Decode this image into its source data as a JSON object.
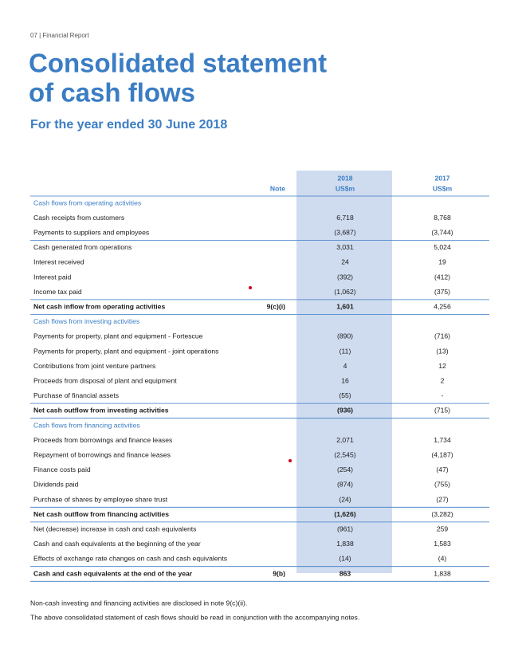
{
  "header": {
    "section": "07 | Financial Report",
    "title_line1": "Consolidated statement",
    "title_line2": "of cash flows",
    "subtitle": "For the year ended 30 June 2018"
  },
  "table": {
    "columns": {
      "note": "Note",
      "year1": "2018",
      "unit1": "US$m",
      "year2": "2017",
      "unit2": "US$m"
    },
    "rows": [
      {
        "label": "Cash flows from operating activities",
        "style": "section"
      },
      {
        "label": "Cash receipts from customers",
        "v2018": "6,718",
        "v2017": "8,768"
      },
      {
        "label": "Payments to suppliers and employees",
        "v2018": "(3,687)",
        "v2017": "(3,744)"
      },
      {
        "label": "Cash generated from operations",
        "v2018": "3,031",
        "v2017": "5,024"
      },
      {
        "label": "Interest received",
        "v2018": "24",
        "v2017": "19"
      },
      {
        "label": "Interest paid",
        "v2018": "(392)",
        "v2017": "(412)"
      },
      {
        "label": "Income tax paid",
        "v2018": "(1,062)",
        "v2017": "(375)"
      },
      {
        "label": "Net cash inflow from operating activities",
        "note": "9(c)(i)",
        "v2018": "1,601",
        "v2017": "4,256",
        "style": "bold"
      },
      {
        "label": "Cash flows from investing activities",
        "style": "section"
      },
      {
        "label": "Payments for property, plant and equipment - Fortescue",
        "v2018": "(890)",
        "v2017": "(716)"
      },
      {
        "label": "Payments for property, plant and equipment - joint operations",
        "v2018": "(11)",
        "v2017": "(13)"
      },
      {
        "label": "Contributions from joint venture partners",
        "v2018": "4",
        "v2017": "12"
      },
      {
        "label": "Proceeds from disposal of plant and equipment",
        "v2018": "16",
        "v2017": "2"
      },
      {
        "label": "Purchase of financial assets",
        "v2018": "(55)",
        "v2017": "-"
      },
      {
        "label": "Net cash outflow from investing activities",
        "v2018": "(936)",
        "v2017": "(715)",
        "style": "bold"
      },
      {
        "label": "Cash flows from financing activities",
        "style": "section"
      },
      {
        "label": "Proceeds from borrowings and finance leases",
        "v2018": "2,071",
        "v2017": "1,734"
      },
      {
        "label": "Repayment of borrowings and finance leases",
        "v2018": "(2,545)",
        "v2017": "(4,187)"
      },
      {
        "label": "Finance costs paid",
        "v2018": "(254)",
        "v2017": "(47)"
      },
      {
        "label": "Dividends paid",
        "v2018": "(874)",
        "v2017": "(755)"
      },
      {
        "label": "Purchase of shares by employee share trust",
        "v2018": "(24)",
        "v2017": "(27)"
      },
      {
        "label": "Net cash outflow from financing activities",
        "v2018": "(1,626)",
        "v2017": "(3,282)",
        "style": "bold"
      },
      {
        "label": "Net (decrease) increase in cash and cash equivalents",
        "v2018": "(961)",
        "v2017": "259"
      },
      {
        "label": "Cash and cash equivalents at the beginning of the year",
        "v2018": "1,838",
        "v2017": "1,583"
      },
      {
        "label": "Effects of exchange rate changes on cash and cash equivalents",
        "v2018": "(14)",
        "v2017": "(4)"
      },
      {
        "label": "Cash and cash equivalents at the end of the year",
        "note": "9(b)",
        "v2018": "863",
        "v2017": "1,838",
        "style": "bold"
      }
    ]
  },
  "footnotes": [
    "Non-cash investing and financing activities are disclosed in note 9(c)(ii).",
    "The above consolidated statement of cash flows should be read in conjunction with the accompanying notes."
  ]
}
